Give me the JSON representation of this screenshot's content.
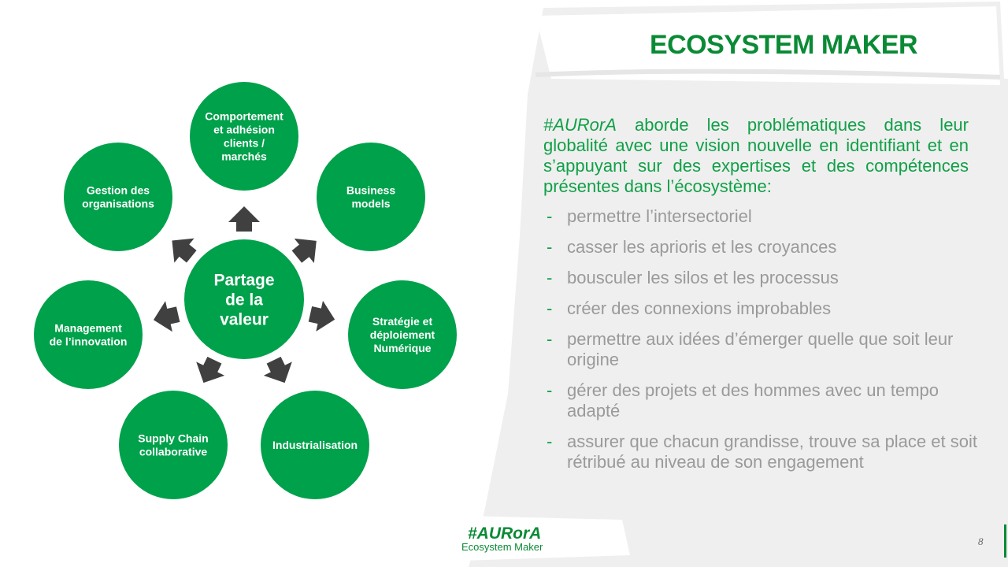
{
  "title": "ECOSYSTEM MAKER",
  "intro": {
    "tag": "#AURorA",
    "text": " aborde les problématiques dans leur globalité avec une vision nouvelle en identifiant et en s’appuyant sur des expertises et des compétences présentes dans l’écosystème:"
  },
  "bullets": [
    "permettre l’intersectoriel",
    "casser les aprioris et les croyances",
    "bousculer les silos et les processus",
    "créer des connexions improbables",
    "permettre aux idées d’émerger quelle que soit leur origine",
    "gérer des projets et des hommes avec un tempo adapté",
    " assurer que chacun grandisse, trouve sa place et soit rétribué au niveau de son engagement"
  ],
  "bullet_marker": "-",
  "diagram": {
    "center": [
      "Partage",
      "de la",
      "valeur"
    ],
    "nodes": [
      [
        "Comportement",
        "et adhésion",
        "clients /",
        "marchés"
      ],
      [
        "Business",
        "models"
      ],
      [
        "Stratégie et",
        "déploiement",
        "Numérique"
      ],
      [
        "Industrialisation"
      ],
      [
        "Supply Chain",
        "collaborative"
      ],
      [
        "Management",
        "de l’innovation"
      ],
      [
        "Gestion des",
        "organisations"
      ]
    ]
  },
  "logo": {
    "main": "#AURorA",
    "sub": "Ecosystem Maker"
  },
  "page_number": "8",
  "colors": {
    "green": "#00a14b",
    "dark_green": "#0a8a35",
    "arrow": "#404040",
    "panel": "#efefef",
    "bullet_text": "#9a9a9a"
  }
}
